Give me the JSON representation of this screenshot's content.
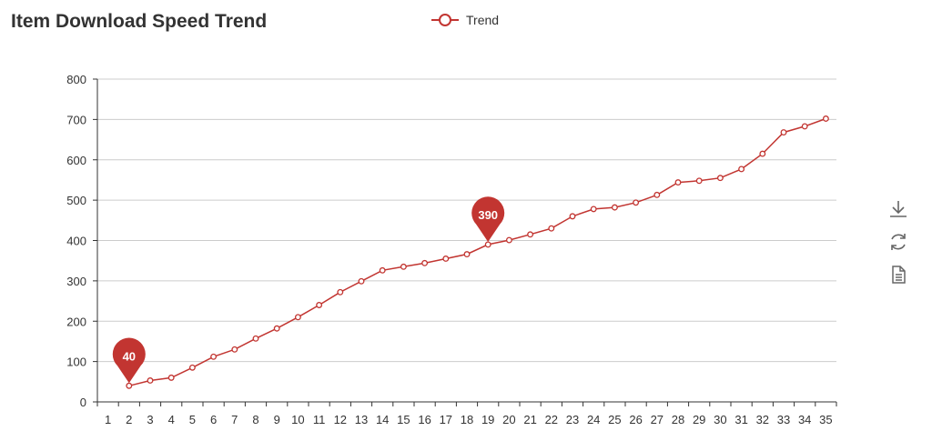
{
  "title": "Item Download Speed Trend",
  "legend": {
    "label": "Trend",
    "color": "#c23531"
  },
  "toolbox": {
    "icons": [
      "download-icon",
      "refresh-icon",
      "data-view-icon"
    ]
  },
  "chart_data": {
    "type": "line",
    "title": "Item Download Speed Trend",
    "xlabel": "",
    "ylabel": "",
    "categories": [
      "1",
      "2",
      "3",
      "4",
      "5",
      "6",
      "7",
      "8",
      "9",
      "10",
      "11",
      "12",
      "13",
      "14",
      "15",
      "16",
      "17",
      "18",
      "19",
      "20",
      "21",
      "22",
      "23",
      "24",
      "25",
      "26",
      "27",
      "28",
      "29",
      "30",
      "31",
      "32",
      "33",
      "34",
      "35"
    ],
    "series": [
      {
        "name": "Trend",
        "color": "#c23531",
        "values": [
          null,
          40,
          53,
          60,
          85,
          112,
          130,
          157,
          182,
          210,
          240,
          272,
          299,
          326,
          335,
          344,
          355,
          366,
          390,
          401,
          415,
          430,
          460,
          478,
          482,
          494,
          513,
          544,
          548,
          555,
          577,
          615,
          668,
          683,
          702
        ]
      }
    ],
    "ylim": [
      0,
      800
    ],
    "yticks": [
      0,
      100,
      200,
      300,
      400,
      500,
      600,
      700,
      800
    ],
    "grid": true,
    "legend_position": "top-center",
    "markers": [
      {
        "category": "2",
        "label": "40"
      },
      {
        "category": "19",
        "label": "390"
      }
    ]
  }
}
